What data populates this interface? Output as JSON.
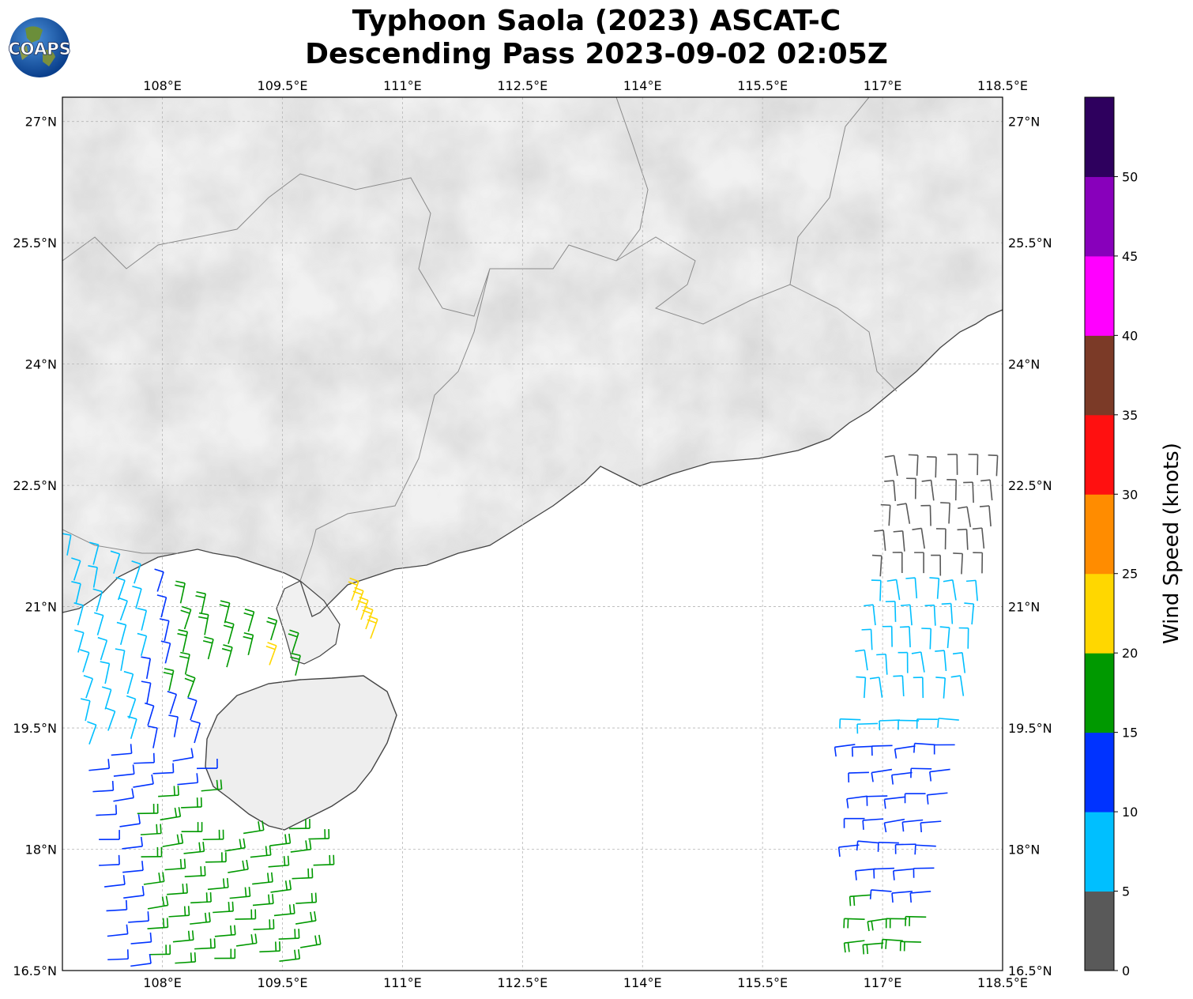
{
  "title": {
    "line1": "Typhoon Saola (2023) ASCAT-C",
    "line2": "Descending Pass 2023-09-02 02:05Z"
  },
  "logo": {
    "text": "COAPS",
    "icon": "globe-logo"
  },
  "map": {
    "lon_range": [
      106.75,
      118.5
    ],
    "lat_range": [
      16.5,
      27.3
    ],
    "lon_ticks": [
      "108°E",
      "109.5°E",
      "111°E",
      "112.5°E",
      "114°E",
      "115.5°E",
      "117°E",
      "118.5°E"
    ],
    "lat_ticks": [
      "27°N",
      "25.5°N",
      "24°N",
      "22.5°N",
      "21°N",
      "19.5°N",
      "18°N",
      "16.5°N"
    ],
    "gridlines": true,
    "background": "grayscale terrain"
  },
  "colorbar": {
    "label": "Wind Speed (knots)",
    "ticks": [
      "0",
      "5",
      "10",
      "15",
      "20",
      "25",
      "30",
      "35",
      "40",
      "45",
      "50"
    ],
    "colors": [
      "#595959",
      "#00bfff",
      "#0033ff",
      "#009900",
      "#ffd700",
      "#ff8c00",
      "#ff1010",
      "#7b3a27",
      "#ff00ff",
      "#8800bb",
      "#2e005e"
    ]
  },
  "wind_swaths": {
    "west": {
      "lon_range": [
        106.75,
        109.9
      ],
      "lat_range": [
        16.5,
        21.7
      ]
    },
    "east": {
      "lon_range": [
        116.6,
        118.5
      ],
      "lat_range": [
        16.5,
        22.8
      ]
    }
  }
}
